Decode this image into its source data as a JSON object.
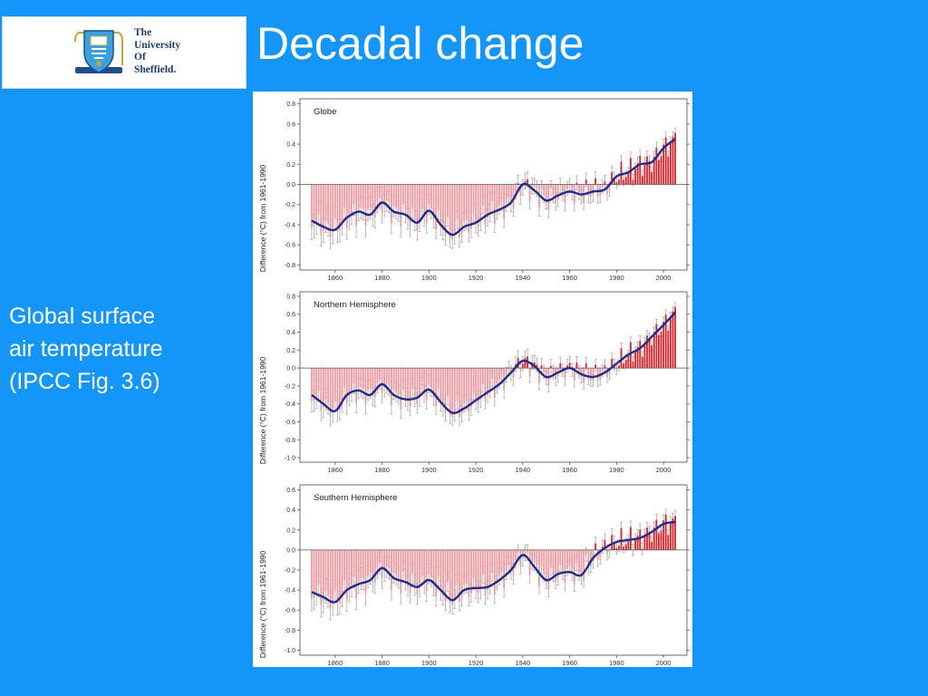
{
  "logo": {
    "lines": [
      "The",
      "University",
      "Of",
      "Sheffield."
    ],
    "icon": "university-crest-icon"
  },
  "slide": {
    "title": "Decadal change",
    "caption_lines": [
      "Global surface",
      "air temperature",
      "(IPCC Fig. 3.6)"
    ]
  },
  "colors": {
    "background": "#1495F8",
    "bar_positive": "#d7242b",
    "bar_negative": "#ee9aa0",
    "smooth_line": "#1e2c8c",
    "error_bar": "#a8a8a8"
  },
  "chart_data": [
    {
      "type": "bar",
      "panel_title": "Globe",
      "ylabel": "Difference (°C) from 1961-1990",
      "xlim": [
        1845,
        2010
      ],
      "ylim": [
        -0.85,
        0.85
      ],
      "yticks": [
        "0.8",
        "0.6",
        "0.4",
        "0.2",
        "0.0",
        "-0.2",
        "-0.4",
        "-0.6",
        "-0.8"
      ],
      "xticks": [
        "1860",
        "1880",
        "1900",
        "1920",
        "1940",
        "1960",
        "1980",
        "2000"
      ],
      "smooth": {
        "x": [
          1850,
          1855,
          1860,
          1865,
          1870,
          1875,
          1880,
          1885,
          1890,
          1895,
          1900,
          1905,
          1910,
          1915,
          1920,
          1925,
          1930,
          1935,
          1940,
          1945,
          1950,
          1955,
          1960,
          1965,
          1970,
          1975,
          1980,
          1985,
          1990,
          1995,
          2000,
          2005
        ],
        "y": [
          -0.36,
          -0.42,
          -0.45,
          -0.33,
          -0.27,
          -0.3,
          -0.18,
          -0.27,
          -0.3,
          -0.38,
          -0.26,
          -0.4,
          -0.5,
          -0.42,
          -0.38,
          -0.3,
          -0.25,
          -0.18,
          0.0,
          -0.06,
          -0.16,
          -0.11,
          -0.07,
          -0.1,
          -0.07,
          -0.05,
          0.08,
          0.12,
          0.2,
          0.22,
          0.36,
          0.45
        ]
      }
    },
    {
      "type": "bar",
      "panel_title": "Northern Hemisphere",
      "ylabel": "Difference (°C) from 1961-1990",
      "xlim": [
        1845,
        2010
      ],
      "ylim": [
        -1.05,
        0.85
      ],
      "yticks": [
        "0.8",
        "0.6",
        "0.4",
        "0.2",
        "0.0",
        "-0.2",
        "-0.4",
        "-0.6",
        "-0.8",
        "-1.0"
      ],
      "xticks": [
        "1860",
        "1880",
        "1900",
        "1920",
        "1940",
        "1960",
        "1980",
        "2000"
      ],
      "smooth": {
        "x": [
          1850,
          1855,
          1860,
          1865,
          1870,
          1875,
          1880,
          1885,
          1890,
          1895,
          1900,
          1905,
          1910,
          1915,
          1920,
          1925,
          1930,
          1935,
          1940,
          1945,
          1950,
          1955,
          1960,
          1965,
          1970,
          1975,
          1980,
          1985,
          1990,
          1995,
          2000,
          2005
        ],
        "y": [
          -0.3,
          -0.4,
          -0.48,
          -0.3,
          -0.25,
          -0.3,
          -0.18,
          -0.3,
          -0.35,
          -0.33,
          -0.24,
          -0.38,
          -0.5,
          -0.45,
          -0.36,
          -0.27,
          -0.18,
          -0.05,
          0.08,
          0.02,
          -0.1,
          -0.05,
          0.0,
          -0.07,
          -0.1,
          -0.05,
          0.05,
          0.15,
          0.22,
          0.35,
          0.48,
          0.62
        ]
      }
    },
    {
      "type": "bar",
      "panel_title": "Southern Hemisphere",
      "ylabel": "Difference (°C) from 1961-1990",
      "xlim": [
        1845,
        2010
      ],
      "ylim": [
        -1.05,
        0.65
      ],
      "yticks": [
        "0.6",
        "0.4",
        "0.2",
        "0.0",
        "-0.2",
        "-0.4",
        "-0.6",
        "-0.8",
        "-1.0"
      ],
      "xticks": [
        "1860",
        "1880",
        "1900",
        "1920",
        "1940",
        "1960",
        "1980",
        "2000"
      ],
      "smooth": {
        "x": [
          1850,
          1855,
          1860,
          1865,
          1870,
          1875,
          1880,
          1885,
          1890,
          1895,
          1900,
          1905,
          1910,
          1915,
          1920,
          1925,
          1930,
          1935,
          1940,
          1945,
          1950,
          1955,
          1960,
          1965,
          1970,
          1975,
          1980,
          1985,
          1990,
          1995,
          2000,
          2005
        ],
        "y": [
          -0.42,
          -0.47,
          -0.52,
          -0.4,
          -0.34,
          -0.3,
          -0.18,
          -0.28,
          -0.32,
          -0.37,
          -0.3,
          -0.4,
          -0.5,
          -0.4,
          -0.38,
          -0.37,
          -0.3,
          -0.2,
          -0.05,
          -0.17,
          -0.3,
          -0.24,
          -0.22,
          -0.25,
          -0.08,
          0.02,
          0.08,
          0.1,
          0.12,
          0.18,
          0.26,
          0.28
        ]
      }
    }
  ]
}
